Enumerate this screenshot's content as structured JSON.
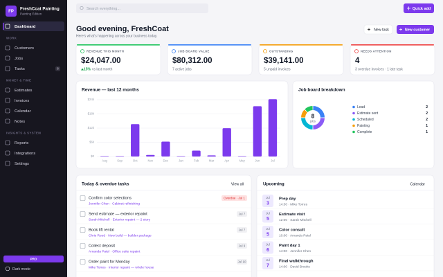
{
  "sidebar": {
    "logo": "FP",
    "brand": "FreshCoat Painting",
    "edition": "Painting Edition",
    "active": "Dashboard",
    "sections": [
      {
        "heading": "WORK",
        "items": [
          {
            "label": "Customers"
          },
          {
            "label": "Jobs"
          },
          {
            "label": "Tasks",
            "badge": 8
          }
        ]
      },
      {
        "heading": "MONEY & TIME",
        "items": [
          {
            "label": "Estimates"
          },
          {
            "label": "Invoices"
          },
          {
            "label": "Calendar"
          },
          {
            "label": "Notes"
          }
        ]
      },
      {
        "heading": "INSIGHTS & SYSTEM",
        "items": [
          {
            "label": "Reports"
          },
          {
            "label": "Integrations"
          },
          {
            "label": "Settings"
          }
        ]
      }
    ],
    "pro_button": "PRO",
    "dark_mode": "Dark mode"
  },
  "topbar": {
    "search_placeholder": "Search everything...",
    "quick_add": "Quick add"
  },
  "header": {
    "title": "Good evening, FreshCoat",
    "subtitle": "Here's what's happening across your business today.",
    "buttons": [
      "New task",
      "New customer"
    ]
  },
  "kpis": [
    {
      "label": "REVENUE THIS MONTH",
      "value": "$24,047.00",
      "trend": "15%",
      "note": "vs last month",
      "color": "#22c55e"
    },
    {
      "label": "JOB BOARD VALUE",
      "value": "$80,312.00",
      "note": "7 active jobs",
      "color": "#3b82f6"
    },
    {
      "label": "OUTSTANDING",
      "value": "$39,141.00",
      "note": "5 unpaid invoices",
      "color": "#f59e0b"
    },
    {
      "label": "NEEDS ATTENTION",
      "value": "4",
      "note": "3 overdue invoices · 1 late task",
      "color": "#ef4444"
    }
  ],
  "revenue_chart": {
    "type": "bar",
    "title": "Revenue — last 12 months",
    "categories": [
      "Aug",
      "Sep",
      "Oct",
      "Nov",
      "Dec",
      "Jan",
      "Feb",
      "Mar",
      "Apr",
      "May",
      "Jun",
      "Jul"
    ],
    "values": [
      0,
      0,
      13500,
      500,
      6100,
      0,
      2300,
      300,
      11800,
      0,
      21100,
      24047
    ],
    "color": "#7c3aed",
    "ylim": [
      0,
      25000
    ],
    "yticks": [
      {
        "value": 0,
        "label": "$0"
      },
      {
        "value": 6000,
        "label": "$6k"
      },
      {
        "value": 12000,
        "label": "$12k"
      },
      {
        "value": 18000,
        "label": "$18k"
      },
      {
        "value": 24000,
        "label": "$24k"
      }
    ],
    "grid": true
  },
  "job_breakdown": {
    "type": "donut",
    "title": "Job board breakdown",
    "total": 8,
    "total_label": "jobs",
    "categories": [
      "Lead",
      "Estimate sent",
      "Scheduled",
      "Painting",
      "Complete"
    ],
    "values": [
      2,
      2,
      2,
      1,
      1
    ],
    "colors": [
      "#3b82f6",
      "#8b5cf6",
      "#06b6d4",
      "#f59e0b",
      "#22c55e"
    ]
  },
  "tasks": {
    "title": "Today & overdue tasks",
    "link": "View all",
    "items": [
      {
        "title": "Confirm color selections",
        "detail": "Jennifer Chen · Cabinet refinishing",
        "due": "Overdue · Jul 1",
        "overdue": true
      },
      {
        "title": "Send estimate — exterior repaint",
        "detail": "Sarah Mitchell · Exterior repaint — 2 story",
        "due": "Jul 7",
        "overdue": false
      },
      {
        "title": "Book lift rental",
        "detail": "Chris Reed · New build — builder package",
        "due": "Jul 7",
        "overdue": false
      },
      {
        "title": "Collect deposit",
        "detail": "Amanda Patel · Office suite repaint",
        "due": "Jul 9",
        "overdue": false
      },
      {
        "title": "Order paint for Monday",
        "detail": "Mike Torres · Interior repaint — whole house",
        "due": "Jul 10",
        "overdue": false
      }
    ]
  },
  "upcoming": {
    "title": "Upcoming",
    "link": "Calendar",
    "items": [
      {
        "month": "Jul",
        "day": 3,
        "title": "Prep day",
        "meta": "14:30 · Mike Torres"
      },
      {
        "month": "Jul",
        "day": 5,
        "title": "Estimate visit",
        "meta": "12:00 · Sarah Mitchell"
      },
      {
        "month": "Jul",
        "day": 5,
        "title": "Color consult",
        "meta": "10:00 · Amanda Patel"
      },
      {
        "month": "Jul",
        "day": 6,
        "title": "Paint day 1",
        "meta": "14:00 · Jennifer Chen"
      },
      {
        "month": "Jul",
        "day": 7,
        "title": "Final walkthrough",
        "meta": "14:00 · David Brooks"
      }
    ]
  }
}
